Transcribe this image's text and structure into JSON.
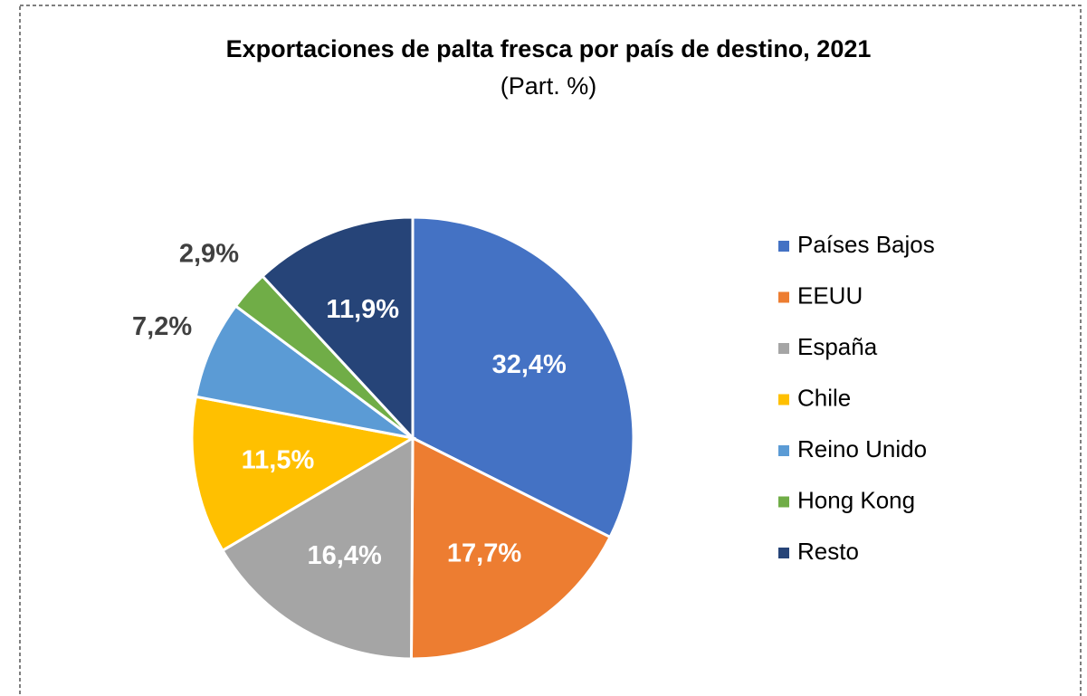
{
  "chart_data": {
    "type": "pie",
    "title": "Exportaciones de palta fresca por país de destino, 2021",
    "subtitle": "(Part. %)",
    "categories": [
      "Países Bajos",
      "EEUU",
      "España",
      "Chile",
      "Reino Unido",
      "Hong Kong",
      "Resto"
    ],
    "values": [
      32.4,
      17.7,
      16.4,
      11.5,
      7.2,
      2.9,
      11.9
    ],
    "value_labels": [
      "32,4%",
      "17,7%",
      "16,4%",
      "11,5%",
      "7,2%",
      "2,9%",
      "11,9%"
    ],
    "colors": [
      "#4472c4",
      "#ed7d31",
      "#a5a5a5",
      "#ffc000",
      "#5b9bd5",
      "#70ad47",
      "#264478"
    ],
    "legend": "right"
  }
}
